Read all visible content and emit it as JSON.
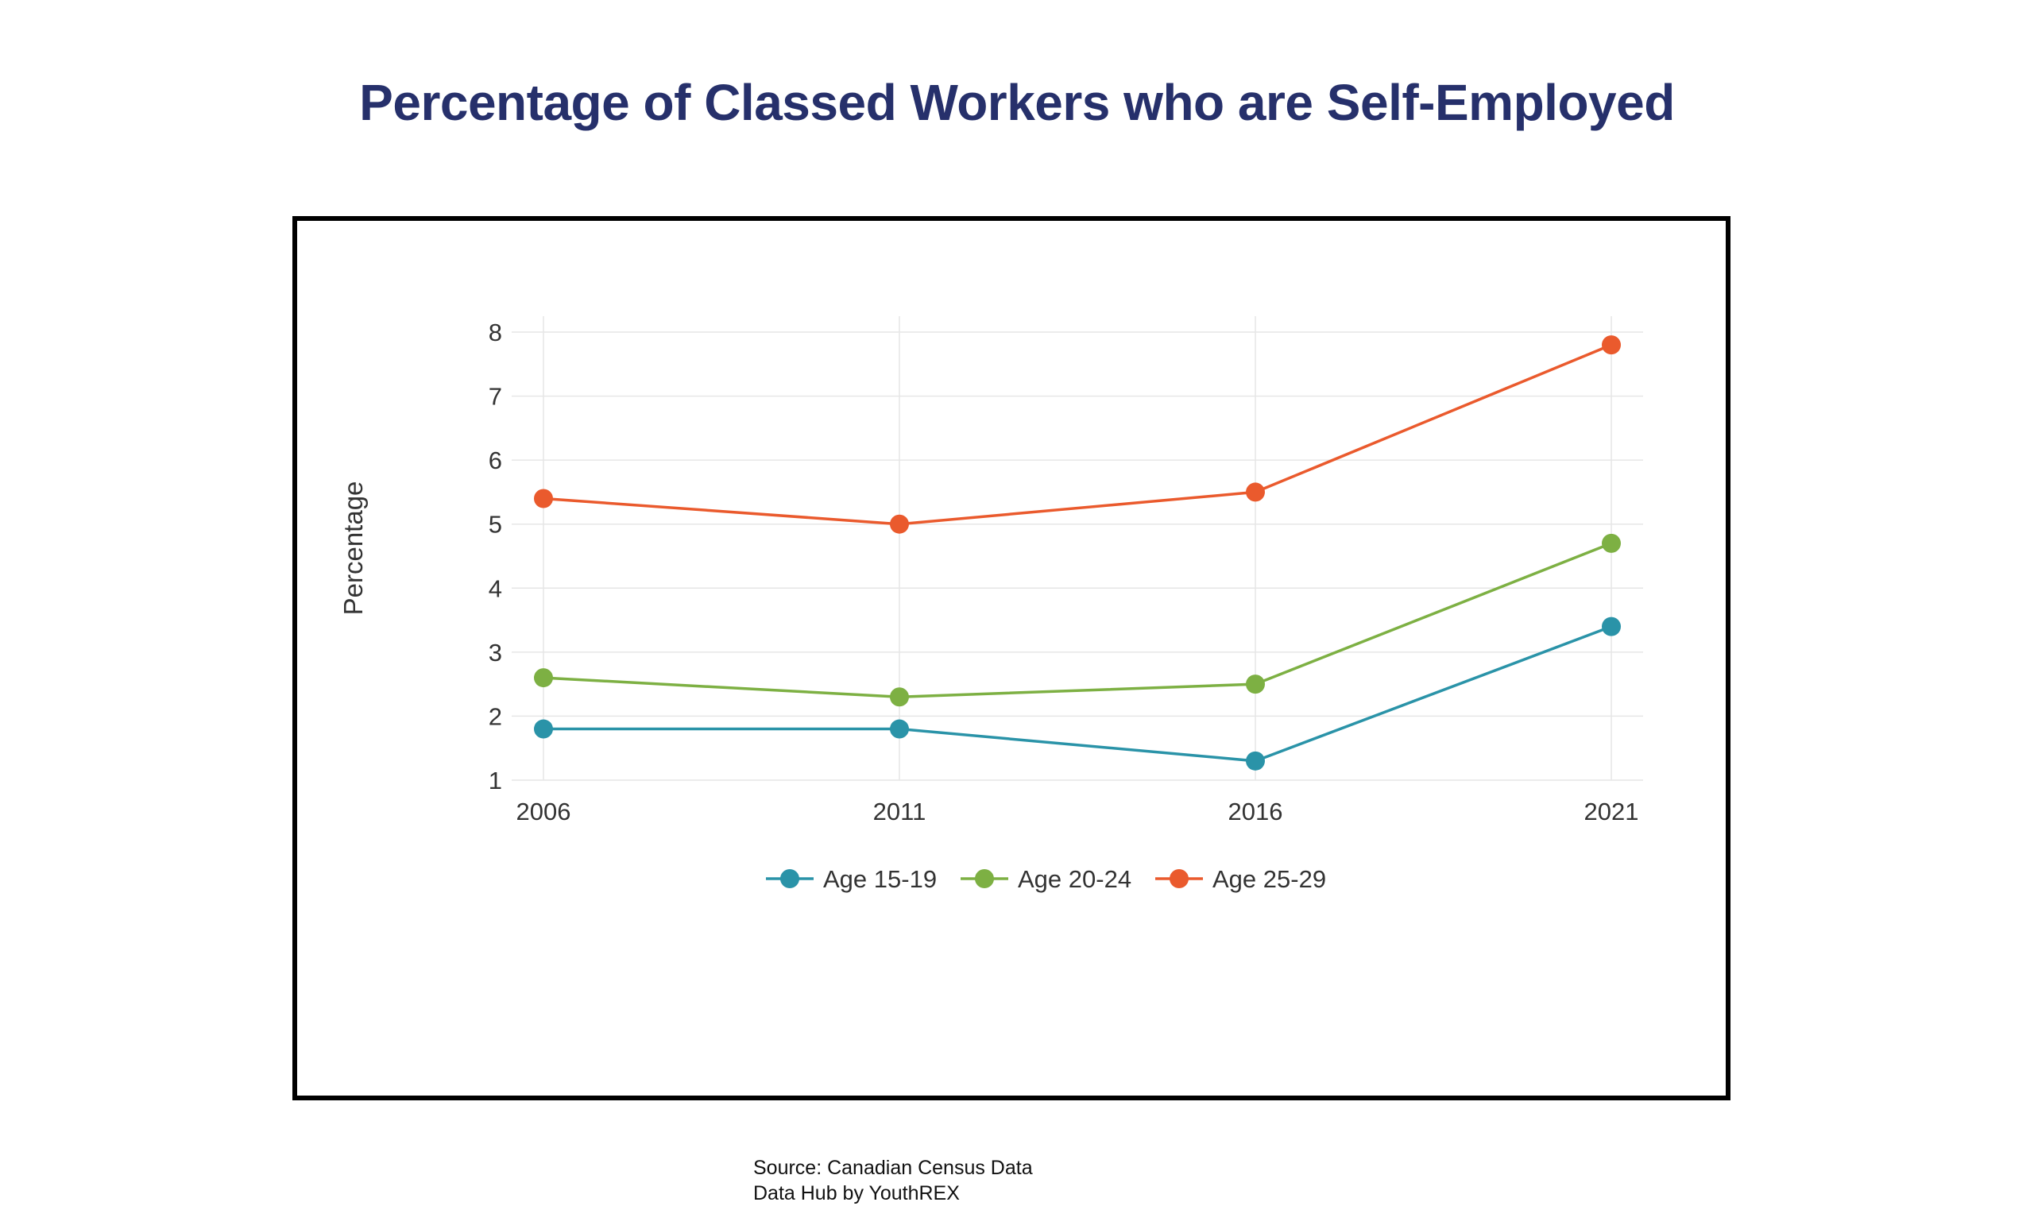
{
  "page": {
    "title": "Percentage of Classed Workers who are Self-Employed"
  },
  "source": {
    "line1": "Source: Canadian Census Data",
    "line2": "Data Hub by YouthREX"
  },
  "chart_data": {
    "type": "line",
    "title": "Percentage of Classed Workers who are Self-Employed",
    "xlabel": "",
    "ylabel": "Percentage",
    "categories": [
      "2006",
      "2011",
      "2016",
      "2021"
    ],
    "ylim": [
      1,
      8
    ],
    "yticks": [
      1,
      2,
      3,
      4,
      5,
      6,
      7,
      8
    ],
    "grid": true,
    "legend_position": "bottom",
    "series": [
      {
        "name": "Age 15-19",
        "color": "#2a93a8",
        "values": [
          1.8,
          1.8,
          1.3,
          3.4
        ]
      },
      {
        "name": "Age 20-24",
        "color": "#7db043",
        "values": [
          2.6,
          2.3,
          2.5,
          4.7
        ]
      },
      {
        "name": "Age 25-29",
        "color": "#ea5a2d",
        "values": [
          5.4,
          5.0,
          5.5,
          7.8
        ]
      }
    ]
  }
}
